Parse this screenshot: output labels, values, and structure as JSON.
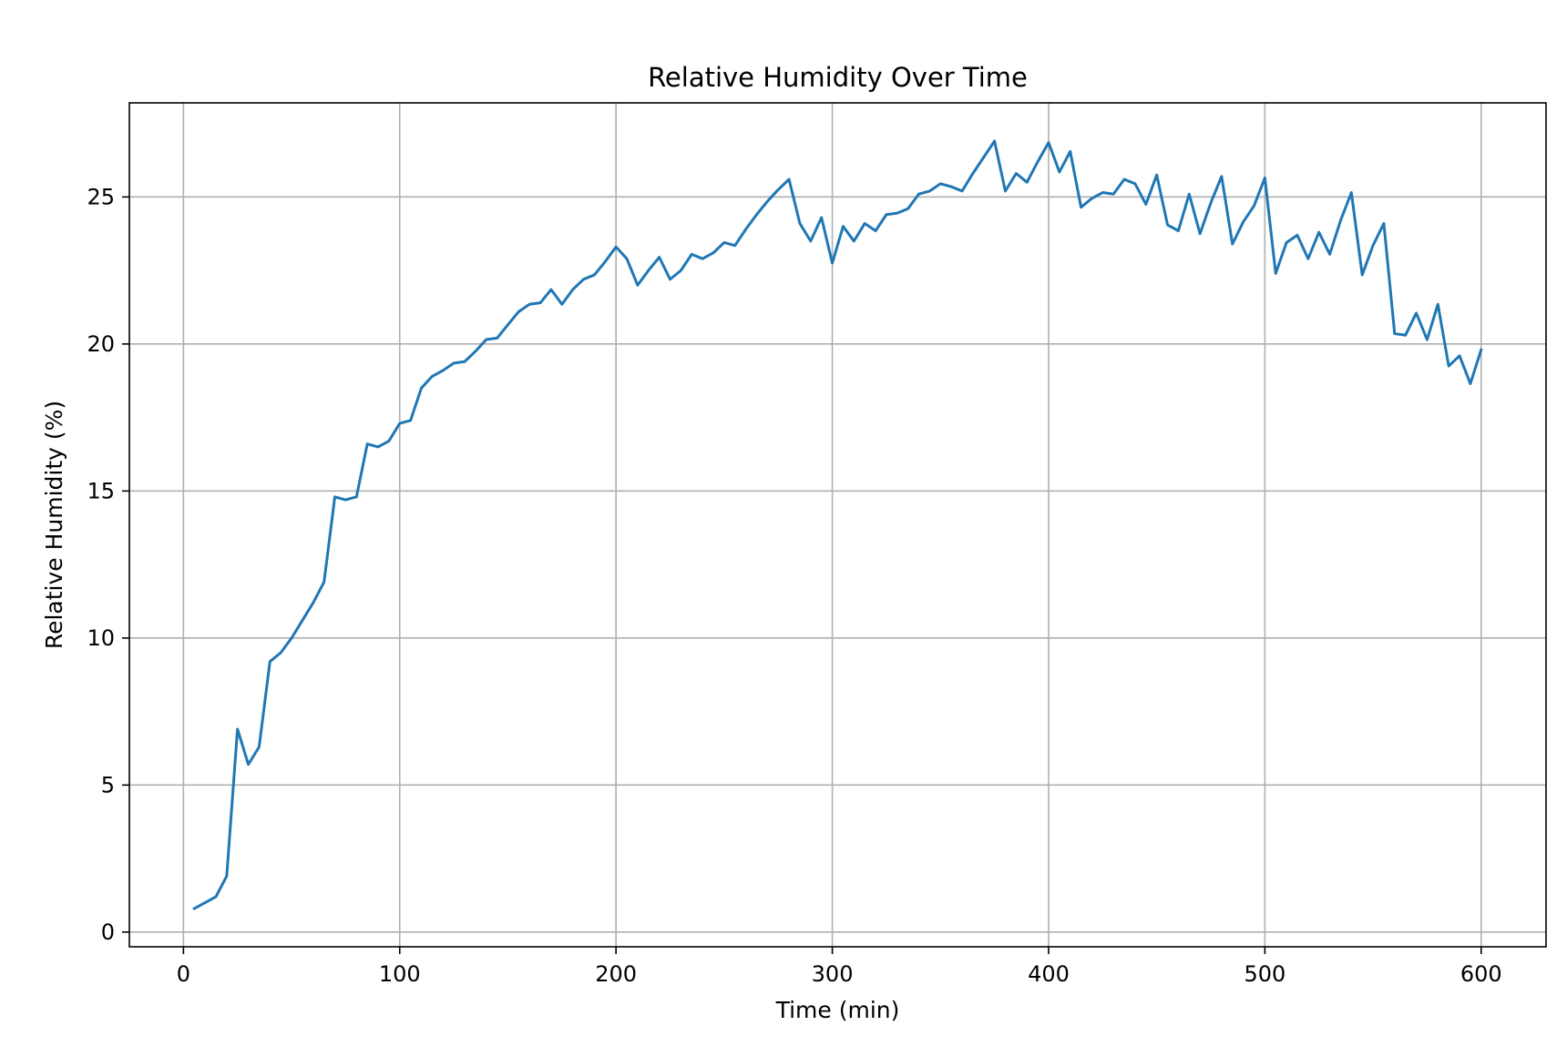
{
  "chart_data": {
    "type": "line",
    "title": "Relative Humidity Over Time",
    "xlabel": "Time (min)",
    "ylabel": "Relative Humidity (%)",
    "xlim": [
      -25,
      630
    ],
    "ylim": [
      -0.5,
      28.2
    ],
    "xticks": [
      0,
      100,
      200,
      300,
      400,
      500,
      600
    ],
    "yticks": [
      0,
      5,
      10,
      15,
      20,
      25
    ],
    "grid": true,
    "legend": "none",
    "colors": {
      "line": "#1f77b4",
      "grid": "#b0b0b0",
      "axes": "#000000"
    },
    "series": [
      {
        "name": "Relative Humidity",
        "x": [
          5,
          10,
          15,
          20,
          25,
          30,
          35,
          40,
          45,
          50,
          55,
          60,
          65,
          70,
          75,
          80,
          85,
          90,
          95,
          100,
          105,
          110,
          115,
          120,
          125,
          130,
          135,
          140,
          145,
          150,
          155,
          160,
          165,
          170,
          175,
          180,
          185,
          190,
          195,
          200,
          205,
          210,
          215,
          220,
          225,
          230,
          235,
          240,
          245,
          250,
          255,
          260,
          265,
          270,
          275,
          280,
          285,
          290,
          295,
          300,
          305,
          310,
          315,
          320,
          325,
          330,
          335,
          340,
          345,
          350,
          355,
          360,
          365,
          370,
          375,
          380,
          385,
          390,
          395,
          400,
          405,
          410,
          415,
          420,
          425,
          430,
          435,
          440,
          445,
          450,
          455,
          460,
          465,
          470,
          475,
          480,
          485,
          490,
          495,
          500,
          505,
          510,
          515,
          520,
          525,
          530,
          535,
          540,
          545,
          550,
          555,
          560,
          565,
          570,
          575,
          580,
          585,
          590,
          595,
          600
        ],
        "y": [
          0.8,
          1.0,
          1.2,
          1.9,
          6.9,
          5.7,
          6.3,
          9.2,
          9.5,
          10.0,
          10.6,
          11.2,
          11.9,
          14.8,
          14.7,
          14.8,
          16.6,
          16.5,
          16.7,
          17.3,
          17.4,
          18.5,
          18.9,
          19.1,
          19.35,
          19.4,
          19.75,
          20.15,
          20.2,
          20.65,
          21.1,
          21.35,
          21.4,
          21.85,
          21.35,
          21.85,
          22.2,
          22.35,
          22.8,
          23.3,
          22.9,
          22.0,
          22.5,
          22.95,
          22.2,
          22.5,
          23.05,
          22.9,
          23.1,
          23.45,
          23.35,
          23.9,
          24.4,
          24.85,
          25.25,
          25.6,
          24.1,
          23.5,
          24.3,
          22.75,
          24.0,
          23.5,
          24.1,
          23.85,
          24.4,
          24.45,
          24.6,
          25.1,
          25.2,
          25.45,
          25.35,
          25.2,
          25.8,
          26.35,
          26.9,
          25.2,
          25.8,
          25.5,
          26.2,
          26.85,
          25.85,
          26.55,
          24.65,
          24.95,
          25.15,
          25.1,
          25.6,
          25.45,
          24.75,
          25.75,
          24.05,
          23.85,
          25.1,
          23.75,
          24.8,
          25.7,
          23.4,
          24.15,
          24.7,
          25.65,
          22.4,
          23.45,
          23.7,
          22.9,
          23.8,
          23.05,
          24.2,
          25.15,
          22.35,
          23.35,
          24.1,
          20.35,
          20.3,
          21.05,
          20.15,
          21.35,
          19.25,
          19.6,
          18.65,
          19.8
        ]
      }
    ]
  }
}
